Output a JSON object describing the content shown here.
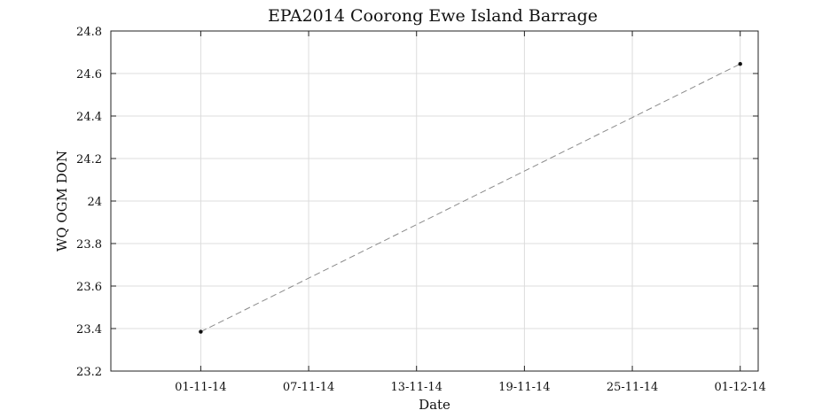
{
  "chart_data": {
    "type": "line",
    "title": "EPA2014 Coorong Ewe Island Barrage",
    "xlabel": "Date",
    "ylabel": "WQ OGM DON",
    "x_ticks": [
      "01-11-14",
      "07-11-14",
      "13-11-14",
      "19-11-14",
      "25-11-14",
      "01-12-14"
    ],
    "x_tick_dates": [
      "2014-11-01",
      "2014-11-07",
      "2014-11-13",
      "2014-11-19",
      "2014-11-25",
      "2014-12-01"
    ],
    "xlim": [
      "2014-10-27",
      "2014-12-02"
    ],
    "y_ticks": [
      "23.2",
      "23.4",
      "23.6",
      "23.8",
      "24",
      "24.2",
      "24.4",
      "24.6",
      "24.8"
    ],
    "ylim": [
      23.2,
      24.8
    ],
    "grid": true,
    "series": [
      {
        "x": [
          "2014-11-01",
          "2014-12-01"
        ],
        "y": [
          23.385,
          24.645
        ],
        "line_color": "#8a8a8a",
        "line_style": "dashed",
        "marker_color": "#111111"
      }
    ]
  }
}
